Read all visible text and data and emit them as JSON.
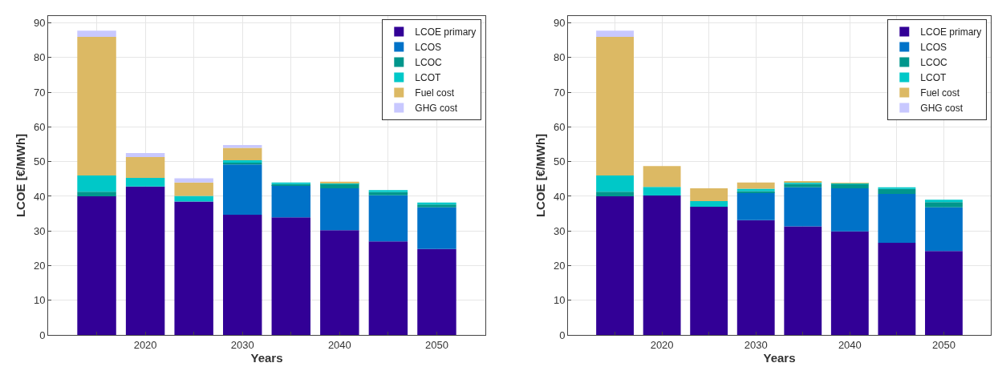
{
  "chart_data": [
    {
      "type": "bar",
      "stacked": true,
      "xlabel": "Years",
      "ylabel": "LCOE [€/MWh]",
      "x": [
        2015,
        2020,
        2025,
        2030,
        2035,
        2040,
        2045,
        2050
      ],
      "xlim": [
        2010,
        2055
      ],
      "xticks": [
        {
          "value": 2015,
          "label": null
        },
        2020,
        {
          "value": 2025,
          "label": null
        },
        2030,
        {
          "value": 2035,
          "label": null
        },
        2040,
        {
          "value": 2045,
          "label": null
        },
        2050
      ],
      "ylim": [
        0,
        92
      ],
      "yticks": [
        0,
        10,
        20,
        30,
        40,
        50,
        60,
        70,
        80,
        90
      ],
      "grid": true,
      "legend": "top right",
      "series": [
        {
          "name": "LCOE primary",
          "color": "#320096",
          "values": [
            40,
            42.8,
            38.5,
            34.7,
            33.9,
            30.2,
            27,
            24.8
          ]
        },
        {
          "name": "LCOS",
          "color": "#0072c8",
          "values": [
            0,
            0,
            0,
            14.5,
            9.3,
            12.1,
            13.3,
            12
          ]
        },
        {
          "name": "LCOC",
          "color": "#00968c",
          "values": [
            1.3,
            0,
            0,
            0.5,
            0.3,
            1.3,
            0.9,
            0.8
          ]
        },
        {
          "name": "LCOT",
          "color": "#00c8c8",
          "values": [
            4.7,
            2.5,
            1.6,
            0.7,
            0.5,
            0.3,
            0.6,
            0.6
          ]
        },
        {
          "name": "Fuel cost",
          "color": "#dcb964",
          "values": [
            40,
            6,
            3.9,
            3.6,
            0,
            0.3,
            0,
            0
          ]
        },
        {
          "name": "GHG cost",
          "color": "#c8c8ff",
          "values": [
            1.8,
            1.2,
            1.2,
            0.8,
            0,
            0,
            0,
            0
          ]
        }
      ]
    },
    {
      "type": "bar",
      "stacked": true,
      "xlabel": "Years",
      "ylabel": "LCOE [€/MWh]",
      "x": [
        2015,
        2020,
        2025,
        2030,
        2035,
        2040,
        2045,
        2050
      ],
      "xlim": [
        2010,
        2055
      ],
      "xticks": [
        {
          "value": 2015,
          "label": null
        },
        2020,
        {
          "value": 2025,
          "label": null
        },
        2030,
        {
          "value": 2035,
          "label": null
        },
        2040,
        {
          "value": 2045,
          "label": null
        },
        2050
      ],
      "ylim": [
        0,
        92
      ],
      "yticks": [
        0,
        10,
        20,
        30,
        40,
        50,
        60,
        70,
        80,
        90
      ],
      "grid": true,
      "legend": "top right",
      "series": [
        {
          "name": "LCOE primary",
          "color": "#320096",
          "values": [
            40,
            40.2,
            37,
            33.1,
            31.3,
            29.9,
            26.6,
            24.2
          ]
        },
        {
          "name": "LCOS",
          "color": "#0072c8",
          "values": [
            0,
            0,
            0,
            8,
            11.3,
            12.4,
            14.1,
            12.6
          ]
        },
        {
          "name": "LCOC",
          "color": "#00968c",
          "values": [
            1.3,
            0,
            0,
            0.4,
            1,
            1.2,
            1.4,
            1.5
          ]
        },
        {
          "name": "LCOT",
          "color": "#00c8c8",
          "values": [
            4.7,
            2.5,
            1.6,
            0.7,
            0.5,
            0.2,
            0.5,
            0.7
          ]
        },
        {
          "name": "Fuel cost",
          "color": "#dcb964",
          "values": [
            40,
            6,
            3.7,
            1.8,
            0.3,
            0.2,
            0,
            0
          ]
        },
        {
          "name": "GHG cost",
          "color": "#c8c8ff",
          "values": [
            1.8,
            0,
            0,
            0,
            0,
            0,
            0,
            0
          ]
        }
      ]
    }
  ]
}
